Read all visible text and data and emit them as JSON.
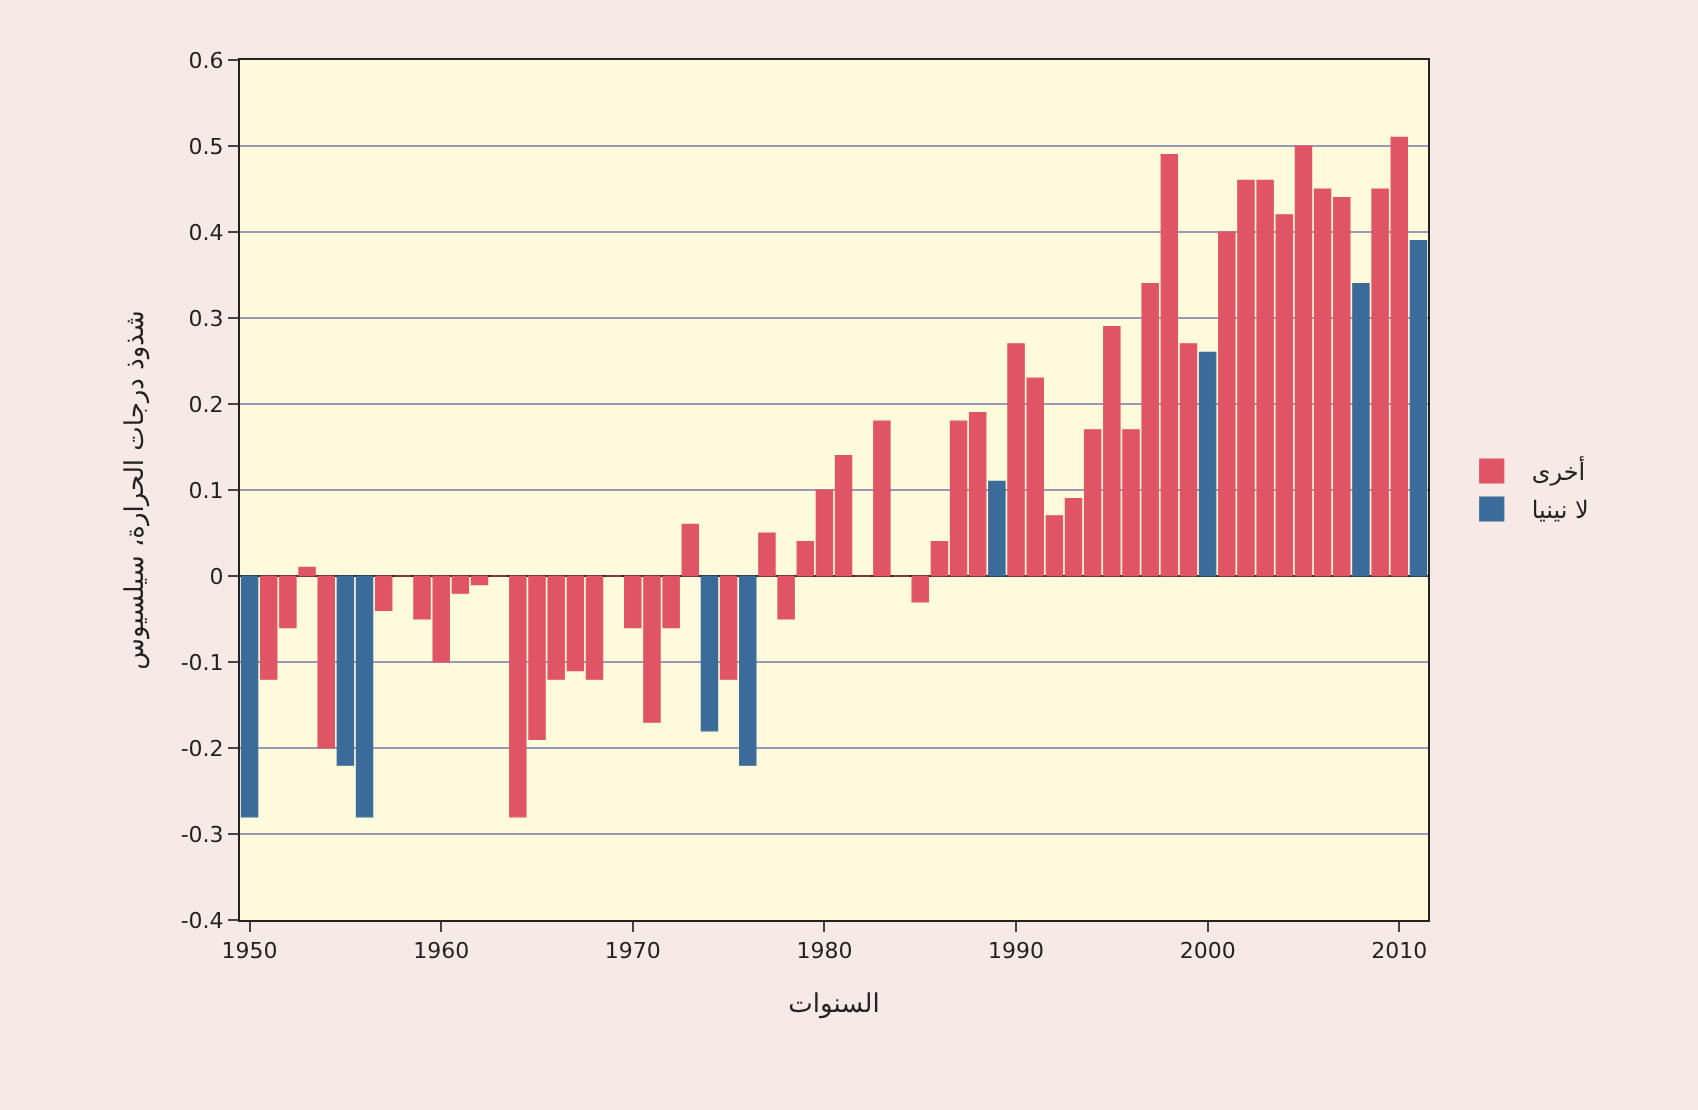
{
  "chart_data": {
    "type": "bar",
    "xlabel": "السنوات",
    "ylabel": "شذوذ درجات الحرارة، سيلسيوس",
    "x": [
      1950,
      1951,
      1952,
      1953,
      1954,
      1955,
      1956,
      1957,
      1958,
      1959,
      1960,
      1961,
      1962,
      1963,
      1964,
      1965,
      1966,
      1967,
      1968,
      1969,
      1970,
      1971,
      1972,
      1973,
      1974,
      1975,
      1976,
      1977,
      1978,
      1979,
      1980,
      1981,
      1982,
      1983,
      1984,
      1985,
      1986,
      1987,
      1988,
      1989,
      1990,
      1991,
      1992,
      1993,
      1994,
      1995,
      1996,
      1997,
      1998,
      1999,
      2000,
      2001,
      2002,
      2003,
      2004,
      2005,
      2006,
      2007,
      2008,
      2009,
      2010,
      2011
    ],
    "series": [
      {
        "name": "أخرى",
        "color": "#e05566",
        "values": [
          null,
          -0.12,
          -0.06,
          0.01,
          -0.2,
          null,
          null,
          -0.04,
          0,
          -0.05,
          -0.1,
          -0.02,
          -0.01,
          0,
          -0.28,
          -0.19,
          -0.12,
          -0.11,
          -0.12,
          0,
          -0.06,
          -0.17,
          -0.06,
          0.06,
          null,
          -0.12,
          null,
          0.05,
          -0.05,
          0.04,
          0.1,
          0.14,
          0,
          0.18,
          0,
          -0.03,
          0.04,
          0.18,
          0.19,
          null,
          0.27,
          0.23,
          0.07,
          0.09,
          0.17,
          0.29,
          0.17,
          0.34,
          0.49,
          0.27,
          null,
          0.4,
          0.46,
          0.46,
          0.42,
          0.5,
          0.45,
          0.44,
          null,
          0.45,
          0.51,
          null
        ]
      },
      {
        "name": "لا نينيا",
        "color": "#3b6c99",
        "values": [
          -0.28,
          null,
          null,
          null,
          null,
          -0.22,
          -0.28,
          null,
          null,
          null,
          null,
          null,
          null,
          null,
          null,
          null,
          null,
          null,
          null,
          null,
          null,
          null,
          null,
          null,
          -0.18,
          null,
          -0.22,
          null,
          null,
          null,
          null,
          null,
          null,
          null,
          null,
          null,
          null,
          null,
          null,
          0.11,
          null,
          null,
          null,
          null,
          null,
          null,
          null,
          null,
          null,
          null,
          0.26,
          null,
          null,
          null,
          null,
          null,
          null,
          null,
          0.34,
          null,
          null,
          0.39
        ]
      }
    ],
    "xlim": [
      1949.5,
      2011.5
    ],
    "xticks": [
      1950,
      1960,
      1970,
      1980,
      1990,
      2000,
      2010
    ],
    "ylim": [
      -0.4,
      0.6
    ],
    "yticks": [
      -0.4,
      -0.3,
      -0.2,
      -0.1,
      0,
      0.1,
      0.2,
      0.3,
      0.4,
      0.5,
      0.6
    ],
    "grid": "y",
    "legend": "right"
  }
}
